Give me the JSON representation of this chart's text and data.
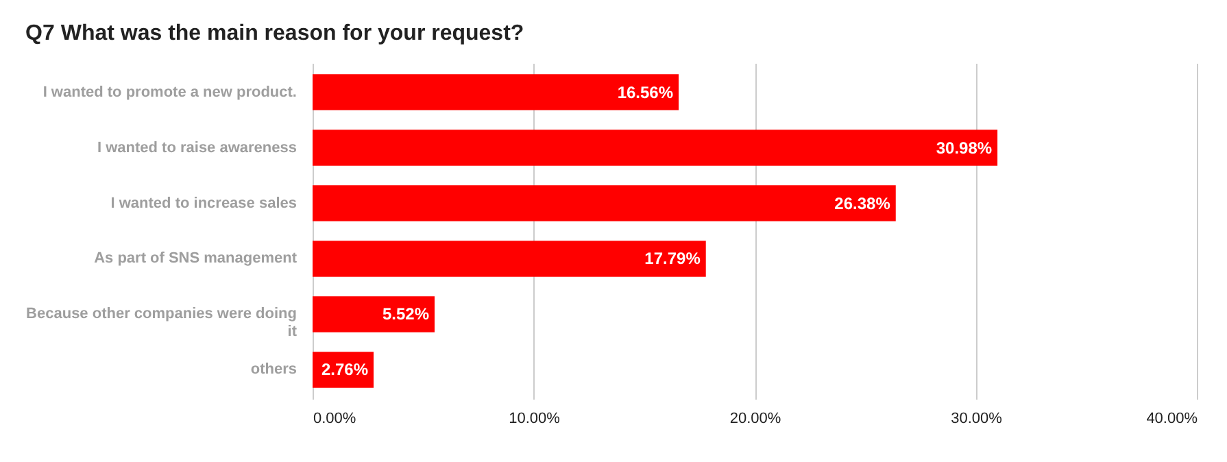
{
  "chart_data": {
    "type": "bar",
    "orientation": "horizontal",
    "title": "Q7 What was the main reason for your request?",
    "categories": [
      "I wanted to promote a new product.",
      "I wanted to raise awareness",
      "I wanted to increase sales",
      "As part of SNS management",
      "Because other companies were doing it",
      "others"
    ],
    "values": [
      16.56,
      30.98,
      26.38,
      17.79,
      5.52,
      2.76
    ],
    "value_labels": [
      "16.56%",
      "30.98%",
      "26.38%",
      "17.79%",
      "5.52%",
      "2.76%"
    ],
    "color": "#ff0000",
    "xlim": [
      0,
      40
    ],
    "xticks": [
      {
        "value": 0,
        "label": "0.00%"
      },
      {
        "value": 10,
        "label": "10.00%"
      },
      {
        "value": 20,
        "label": "20.00%"
      },
      {
        "value": 30,
        "label": "30.00%"
      },
      {
        "value": 40,
        "label": "40.00%"
      }
    ],
    "grid": "x"
  }
}
